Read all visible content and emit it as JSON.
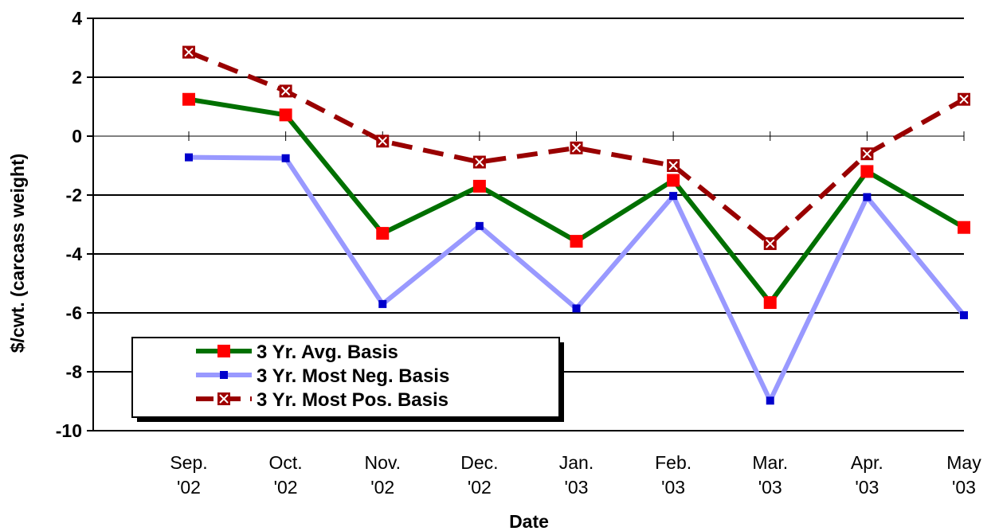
{
  "chart_data": {
    "type": "line",
    "title": "",
    "xlabel": "Date",
    "ylabel": "$/cwt. (carcass weight)",
    "ylim": [
      -10,
      4
    ],
    "yticks": [
      "4",
      "2",
      "0",
      "-2",
      "-4",
      "-6",
      "-8",
      "-10"
    ],
    "grid": true,
    "legend_position": "bottom-left",
    "categories": [
      [
        "Sep.",
        "'02"
      ],
      [
        "Oct.",
        "'02"
      ],
      [
        "Nov.",
        "'02"
      ],
      [
        "Dec.",
        "'02"
      ],
      [
        "Jan.",
        "'03"
      ],
      [
        "Feb.",
        "'03"
      ],
      [
        "Mar.",
        "'03"
      ],
      [
        "Apr.",
        "'03"
      ],
      [
        "May",
        "'03"
      ]
    ],
    "series": [
      {
        "name": "3 Yr. Avg. Basis",
        "color": "#007000",
        "marker_color": "#ff0000",
        "marker": "square",
        "dashed": false,
        "values": [
          1.25,
          0.72,
          -3.3,
          -1.7,
          -3.57,
          -1.5,
          -5.65,
          -1.2,
          -3.1
        ]
      },
      {
        "name": "3 Yr. Most Neg. Basis",
        "color": "#9999ff",
        "marker_color": "#0000cc",
        "marker": "small-square",
        "dashed": false,
        "values": [
          -0.72,
          -0.75,
          -5.7,
          -3.05,
          -5.85,
          -2.03,
          -8.98,
          -2.07,
          -6.08
        ]
      },
      {
        "name": "3 Yr. Most Pos. Basis",
        "color": "#990000",
        "marker_color": "#a00000",
        "marker": "x-square",
        "dashed": true,
        "values": [
          2.85,
          1.53,
          -0.17,
          -0.88,
          -0.4,
          -1.0,
          -3.65,
          -0.6,
          1.25
        ]
      }
    ]
  }
}
